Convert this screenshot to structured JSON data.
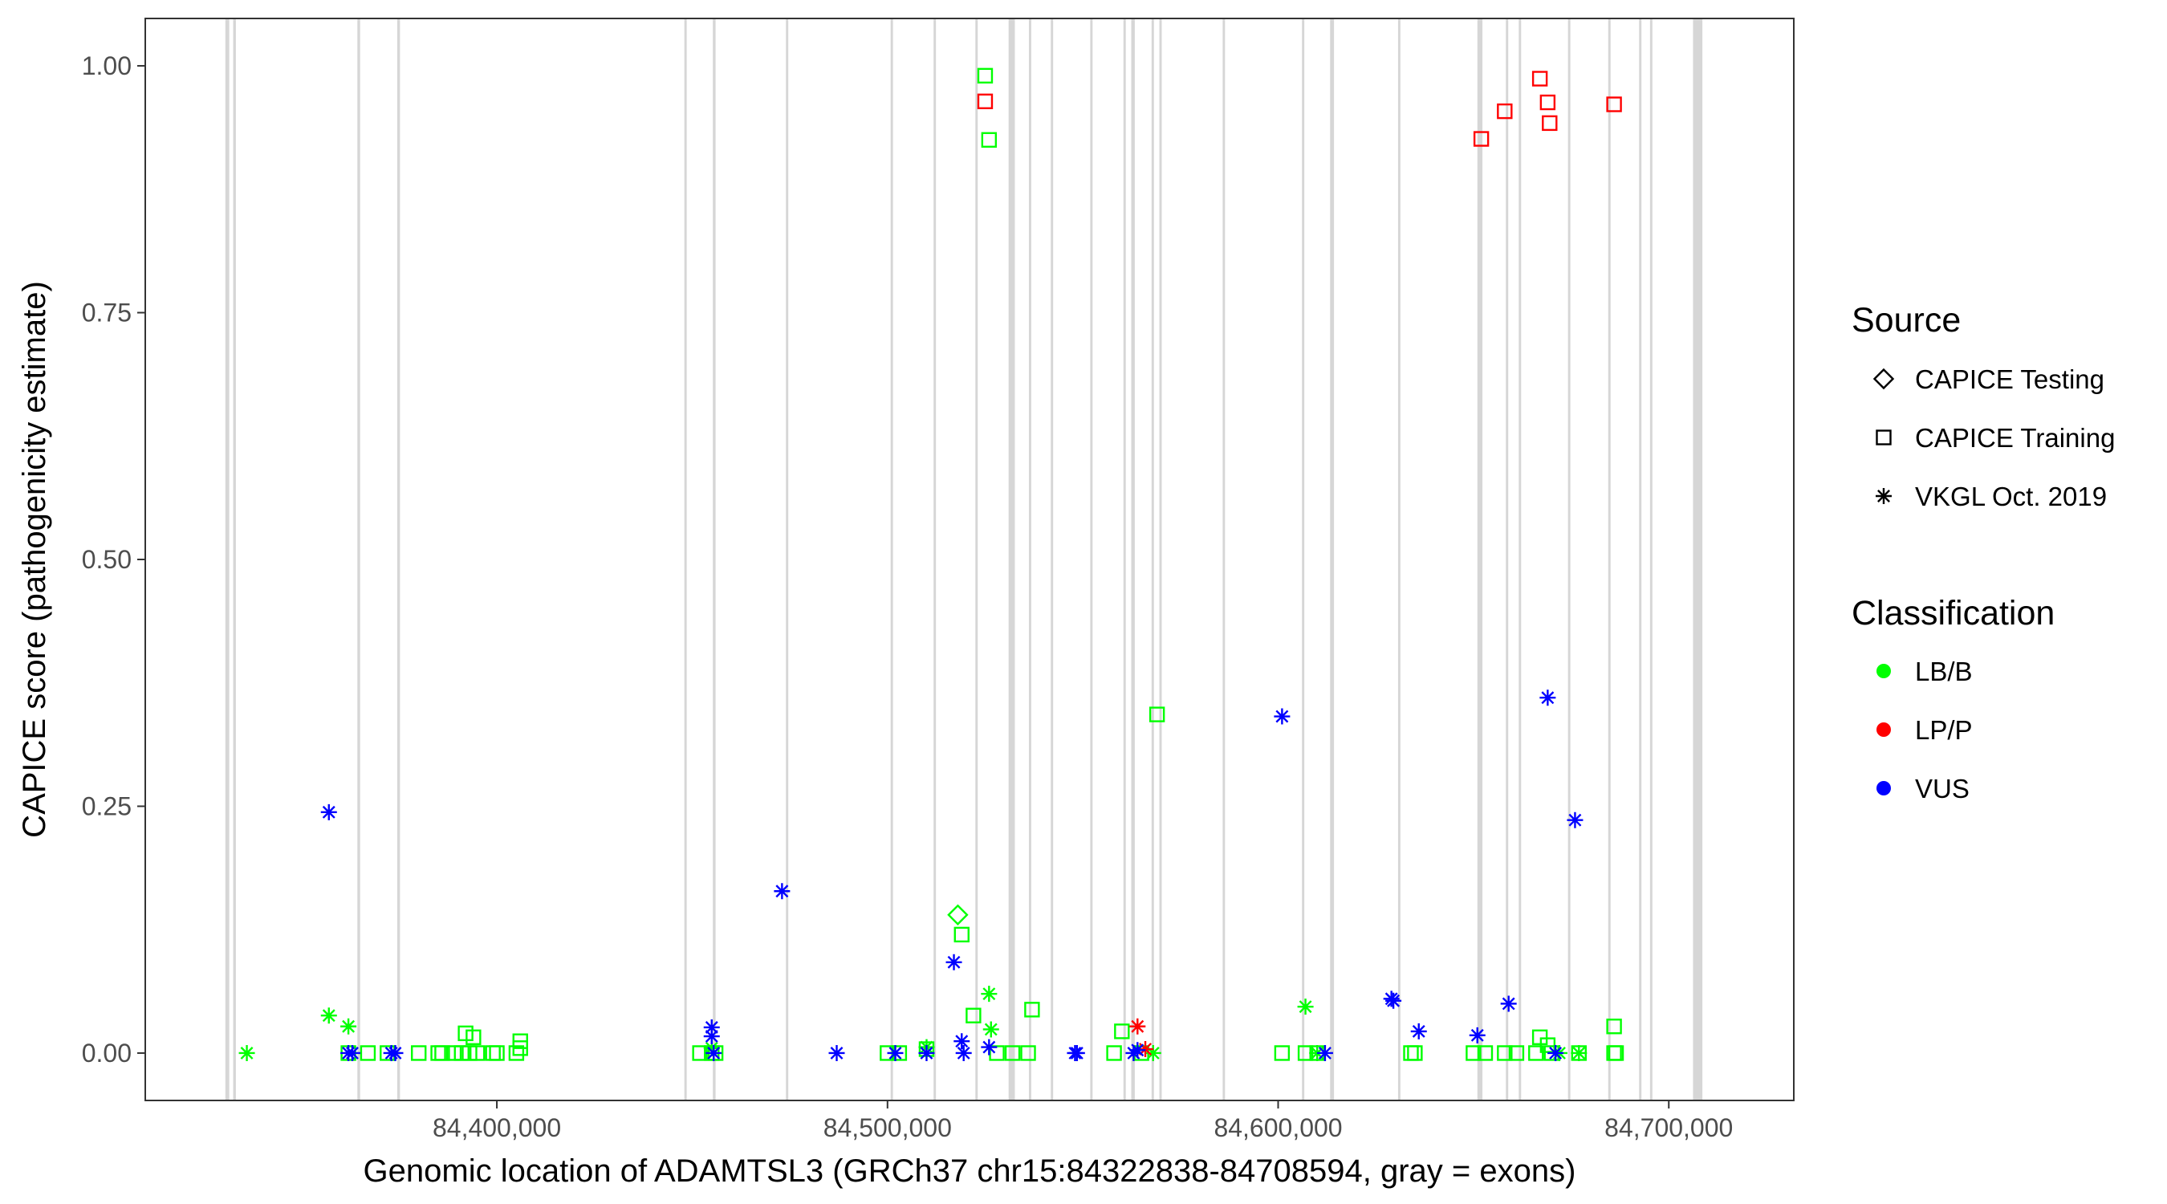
{
  "chart_data": {
    "type": "scatter",
    "xlabel": "Genomic location of ADAMTSL3 (GRCh37 chr15:84322838-84708594, gray = exons)",
    "ylabel": "CAPICE score (pathogenicity estimate)",
    "xlim": [
      84310000,
      84732000
    ],
    "ylim": [
      -0.048,
      1.048
    ],
    "x_ticks": [
      84400000,
      84500000,
      84600000,
      84700000
    ],
    "x_tick_labels": [
      "84,400,000",
      "84,500,000",
      "84,600,000",
      "84,700,000"
    ],
    "y_ticks": [
      0.0,
      0.25,
      0.5,
      0.75,
      1.0
    ],
    "y_tick_labels": [
      "0.00",
      "0.25",
      "0.50",
      "0.75",
      "1.00"
    ],
    "grid": false,
    "exons": [
      {
        "start": 84330500,
        "end": 84331500
      },
      {
        "start": 84332500,
        "end": 84333200
      },
      {
        "start": 84364300,
        "end": 84365000
      },
      {
        "start": 84374500,
        "end": 84375200
      },
      {
        "start": 84448000,
        "end": 84448600
      },
      {
        "start": 84455300,
        "end": 84456000
      },
      {
        "start": 84474000,
        "end": 84474600
      },
      {
        "start": 84500800,
        "end": 84501400
      },
      {
        "start": 84511800,
        "end": 84512400
      },
      {
        "start": 84522500,
        "end": 84523100
      },
      {
        "start": 84531000,
        "end": 84532600
      },
      {
        "start": 84536200,
        "end": 84536800
      },
      {
        "start": 84541800,
        "end": 84542400
      },
      {
        "start": 84551900,
        "end": 84552500
      },
      {
        "start": 84560400,
        "end": 84561000
      },
      {
        "start": 84562400,
        "end": 84563300
      },
      {
        "start": 84567600,
        "end": 84568200
      },
      {
        "start": 84569600,
        "end": 84570200
      },
      {
        "start": 84585800,
        "end": 84586400
      },
      {
        "start": 84606100,
        "end": 84606700
      },
      {
        "start": 84613300,
        "end": 84614300
      },
      {
        "start": 84630700,
        "end": 84631300
      },
      {
        "start": 84651000,
        "end": 84652300
      },
      {
        "start": 84658300,
        "end": 84658900
      },
      {
        "start": 84661600,
        "end": 84662200
      },
      {
        "start": 84674200,
        "end": 84674800
      },
      {
        "start": 84684500,
        "end": 84685100
      },
      {
        "start": 84692400,
        "end": 84693000
      },
      {
        "start": 84695200,
        "end": 84695800
      },
      {
        "start": 84706200,
        "end": 84708600
      }
    ],
    "series": [
      {
        "source": "CAPICE Training",
        "classification": "LB/B",
        "points": [
          [
            84362000,
            0
          ],
          [
            84367000,
            0
          ],
          [
            84372000,
            0
          ],
          [
            84380000,
            0
          ],
          [
            84385000,
            0
          ],
          [
            84386000,
            0
          ],
          [
            84389000,
            0
          ],
          [
            84391000,
            0
          ],
          [
            84393000,
            0
          ],
          [
            84395000,
            0
          ],
          [
            84392000,
            0.02
          ],
          [
            84394000,
            0.016
          ],
          [
            84399000,
            0
          ],
          [
            84400000,
            0
          ],
          [
            84405000,
            0
          ],
          [
            84406000,
            0.005
          ],
          [
            84406000,
            0.012
          ],
          [
            84452000,
            0
          ],
          [
            84455000,
            0
          ],
          [
            84456000,
            0
          ],
          [
            84500000,
            0
          ],
          [
            84503000,
            0
          ],
          [
            84510000,
            0.004
          ],
          [
            84519000,
            0.12
          ],
          [
            84522000,
            0.038
          ],
          [
            84525000,
            0.99
          ],
          [
            84526000,
            0.925
          ],
          [
            84528000,
            0
          ],
          [
            84532000,
            0
          ],
          [
            84536000,
            0
          ],
          [
            84537000,
            0.044
          ],
          [
            84558000,
            0
          ],
          [
            84560000,
            0.022
          ],
          [
            84565000,
            0
          ],
          [
            84569000,
            0.343
          ],
          [
            84601000,
            0
          ],
          [
            84607000,
            0
          ],
          [
            84610000,
            0
          ],
          [
            84634000,
            0
          ],
          [
            84635000,
            0
          ],
          [
            84650000,
            0
          ],
          [
            84653000,
            0
          ],
          [
            84658000,
            0
          ],
          [
            84661000,
            0
          ],
          [
            84666000,
            0
          ],
          [
            84667000,
            0.016
          ],
          [
            84669000,
            0.008
          ],
          [
            84670000,
            0
          ],
          [
            84677000,
            0
          ],
          [
            84686000,
            0
          ],
          [
            84686500,
            0
          ],
          [
            84686000,
            0.027
          ]
        ]
      },
      {
        "source": "CAPICE Training",
        "classification": "LP/P",
        "points": [
          [
            84525000,
            0.964
          ],
          [
            84652000,
            0.926
          ],
          [
            84658000,
            0.954
          ],
          [
            84667000,
            0.987
          ],
          [
            84669000,
            0.963
          ],
          [
            84669500,
            0.942
          ],
          [
            84686000,
            0.961
          ]
        ]
      },
      {
        "source": "CAPICE Testing",
        "classification": "LB/B",
        "points": [
          [
            84518000,
            0.14
          ]
        ]
      },
      {
        "source": "VKGL Oct. 2019",
        "classification": "LB/B",
        "points": [
          [
            84336000,
            0
          ],
          [
            84357000,
            0.038
          ],
          [
            84362000,
            0.027
          ],
          [
            84455000,
            0.005
          ],
          [
            84510000,
            0.006
          ],
          [
            84526000,
            0.06
          ],
          [
            84526500,
            0.024
          ],
          [
            84568000,
            0
          ],
          [
            84607000,
            0.047
          ],
          [
            84610000,
            0
          ],
          [
            84672000,
            0
          ],
          [
            84677000,
            0
          ]
        ]
      },
      {
        "source": "VKGL Oct. 2019",
        "classification": "LP/P",
        "points": [
          [
            84564000,
            0.027
          ],
          [
            84566000,
            0.004
          ]
        ]
      },
      {
        "source": "VKGL Oct. 2019",
        "classification": "VUS",
        "points": [
          [
            84357000,
            0.244
          ],
          [
            84362000,
            0
          ],
          [
            84363000,
            0
          ],
          [
            84373000,
            0
          ],
          [
            84374000,
            0
          ],
          [
            84455000,
            0.026
          ],
          [
            84455000,
            0.017
          ],
          [
            84455500,
            0
          ],
          [
            84473000,
            0.164
          ],
          [
            84487000,
            0
          ],
          [
            84502000,
            0
          ],
          [
            84510000,
            0
          ],
          [
            84517000,
            0.092
          ],
          [
            84519000,
            0.012
          ],
          [
            84519500,
            0
          ],
          [
            84526000,
            0.006
          ],
          [
            84548000,
            0
          ],
          [
            84548500,
            0
          ],
          [
            84563000,
            0
          ],
          [
            84564000,
            0.003
          ],
          [
            84601000,
            0.341
          ],
          [
            84612000,
            0
          ],
          [
            84629000,
            0.055
          ],
          [
            84629500,
            0.053
          ],
          [
            84636000,
            0.022
          ],
          [
            84651000,
            0.018
          ],
          [
            84659000,
            0.05
          ],
          [
            84669000,
            0.36
          ],
          [
            84671000,
            0
          ],
          [
            84676000,
            0.236
          ]
        ]
      }
    ],
    "legend": {
      "placement": "right",
      "source_title": "Source",
      "source_items": [
        {
          "label": "CAPICE Testing",
          "shape": "diamond"
        },
        {
          "label": "CAPICE Training",
          "shape": "square"
        },
        {
          "label": "VKGL Oct. 2019",
          "shape": "asterisk"
        }
      ],
      "classification_title": "Classification",
      "classification_items": [
        {
          "label": "LB/B",
          "color": "#00ff00"
        },
        {
          "label": "LP/P",
          "color": "#ff0000"
        },
        {
          "label": "VUS",
          "color": "#0000ff"
        }
      ]
    },
    "colors": {
      "LB/B": "#00ff00",
      "LP/P": "#ff0000",
      "VUS": "#0000ff",
      "exon": "#c8c8c8"
    }
  }
}
